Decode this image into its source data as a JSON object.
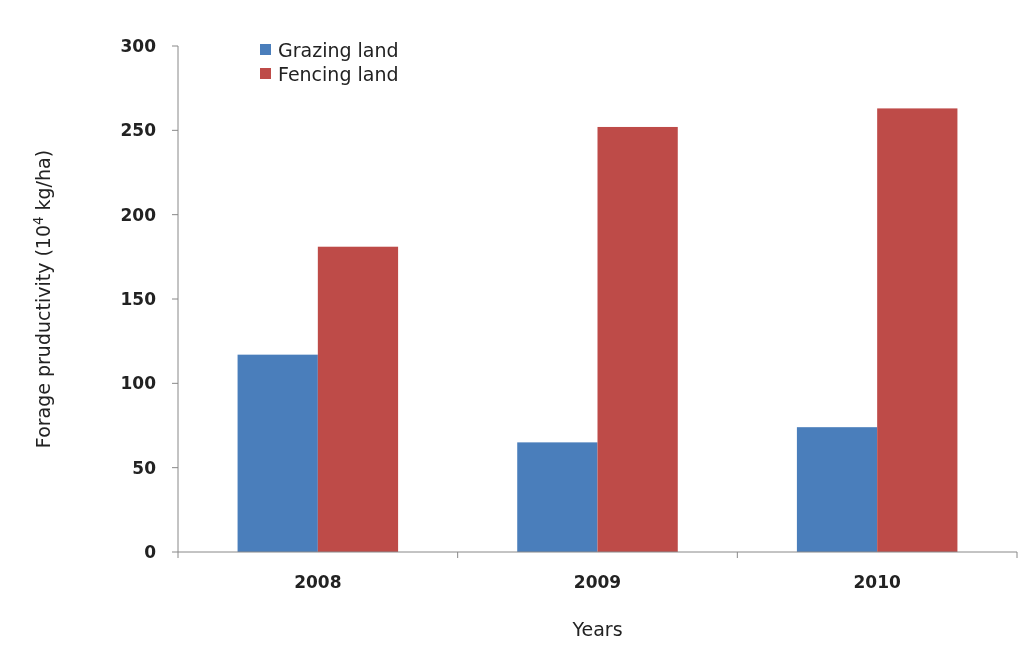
{
  "chart_data": {
    "type": "bar",
    "xlabel": "Years",
    "ylabel": "Forage pruductivity  (10$^{4}$ kg/ha)",
    "categories": [
      "2008",
      "2009",
      "2010"
    ],
    "series": [
      {
        "name": "Grazing land",
        "color": "#4a7ebb",
        "values": [
          117,
          65,
          74
        ]
      },
      {
        "name": "Fencing land",
        "color": "#be4b48",
        "values": [
          181,
          252,
          263
        ]
      }
    ],
    "ylim": [
      0,
      300
    ],
    "yticks": [
      0,
      50,
      100,
      150,
      200,
      250,
      300
    ],
    "grid": false,
    "legend": "top left"
  }
}
